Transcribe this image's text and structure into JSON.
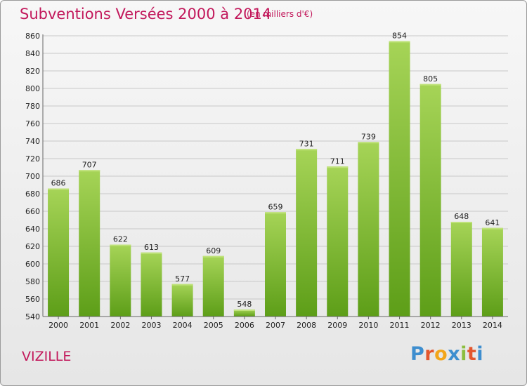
{
  "header": {
    "title": "Subventions Versées 2000 à 2014",
    "subtitle": "(en milliers d'€)"
  },
  "footer": {
    "commune": "VIZILLE",
    "logo_letters": [
      "P",
      "r",
      "o",
      "x",
      "i",
      "t",
      "i"
    ],
    "logo_colors": [
      "#3e8ecf",
      "#e3562d",
      "#f2a51a",
      "#3e8ecf",
      "#8cbe3f",
      "#e3562d",
      "#3e8ecf"
    ]
  },
  "colors": {
    "bar_top": "#a6d457",
    "bar_bottom": "#5d9e18",
    "grid": "#c8c8c8",
    "accent": "#c2185b"
  },
  "chart_data": {
    "type": "bar",
    "categories": [
      "2000",
      "2001",
      "2002",
      "2003",
      "2004",
      "2005",
      "2006",
      "2007",
      "2008",
      "2009",
      "2010",
      "2011",
      "2012",
      "2013",
      "2014"
    ],
    "values": [
      686,
      707,
      622,
      613,
      577,
      609,
      548,
      659,
      731,
      711,
      739,
      854,
      805,
      648,
      641
    ],
    "yticks": [
      "540",
      "560",
      "580",
      "600",
      "620",
      "640",
      "660",
      "680",
      "700",
      "720",
      "740",
      "760",
      "780",
      "800",
      "820",
      "840",
      "860"
    ],
    "ylim": [
      540,
      860
    ],
    "grid": true
  }
}
